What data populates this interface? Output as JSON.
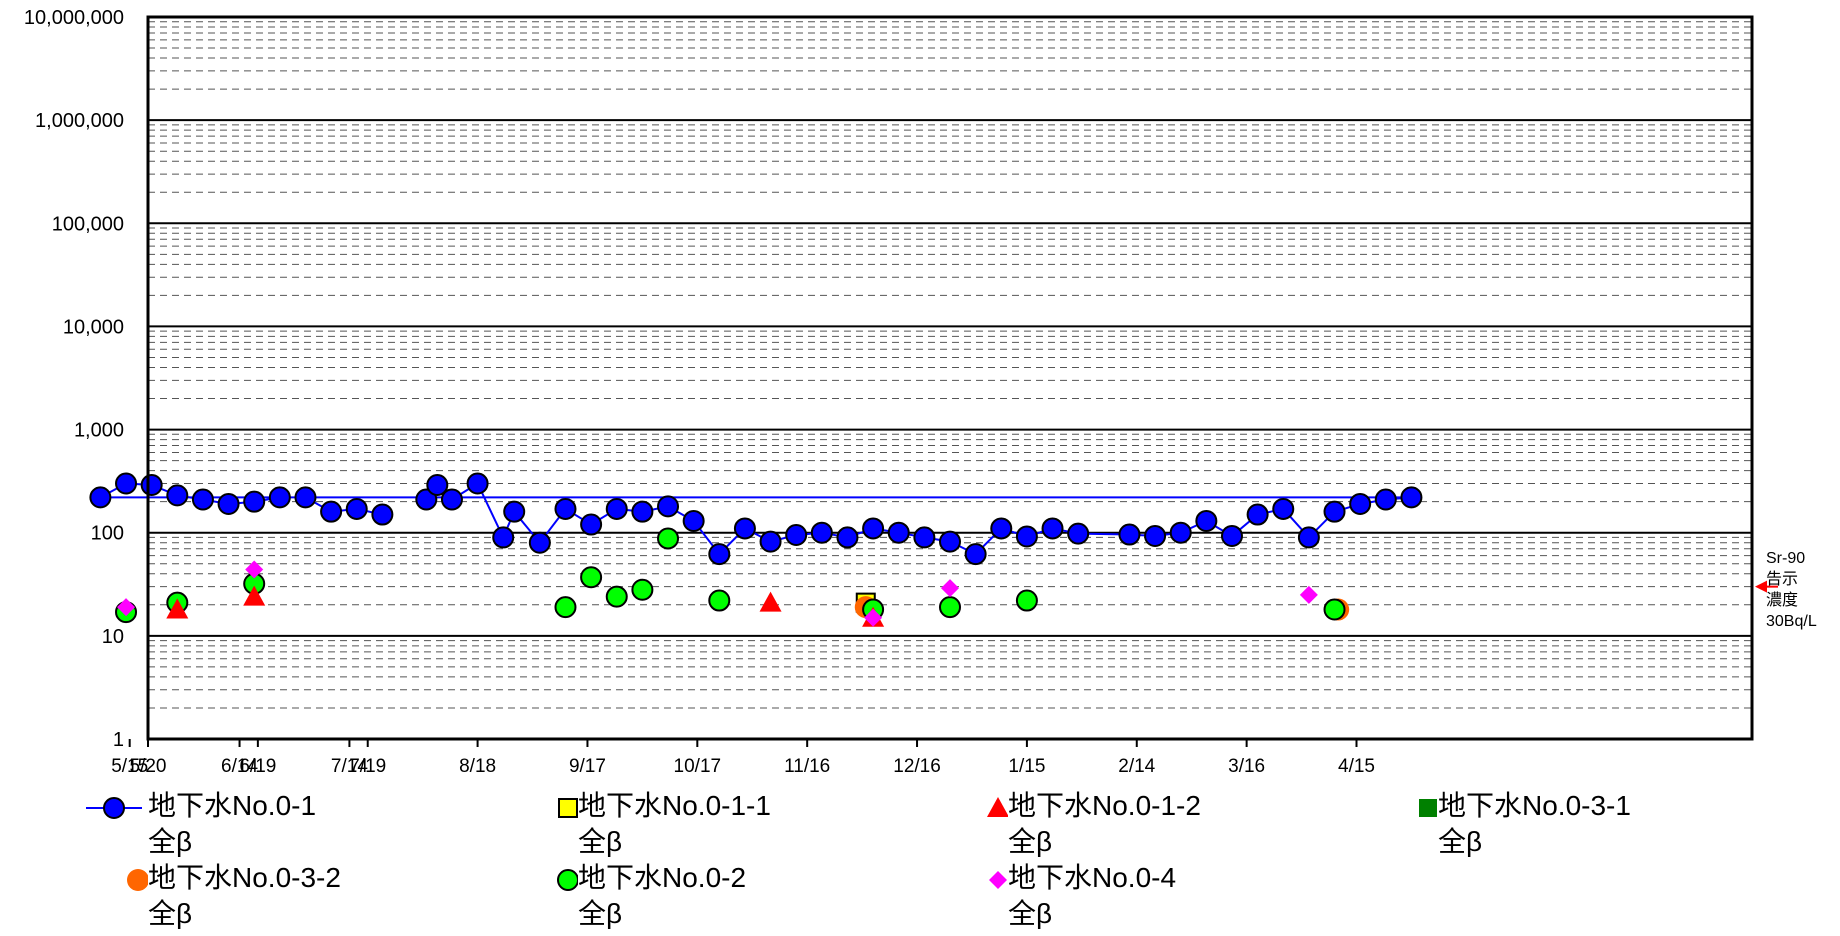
{
  "chart_data": {
    "type": "scatter",
    "title": "",
    "xlabel": "",
    "ylabel": "",
    "y_scale": "log",
    "ylim": [
      1,
      10000000
    ],
    "y_ticks": [
      "1",
      "10",
      "100",
      "1,000",
      "10,000",
      "100,000",
      "1,000,000",
      "10,000,000"
    ],
    "y_tick_values": [
      1,
      10,
      100,
      1000,
      10000,
      100000,
      1000000,
      10000000
    ],
    "x_ticks": [
      "5/20",
      "6/19",
      "7/19",
      "8/18",
      "9/17",
      "10/17",
      "11/16",
      "12/16",
      "1/15",
      "2/14",
      "3/16",
      "4/15",
      "5/15",
      "6/14",
      "7/14"
    ],
    "xlim": [
      "5/20",
      "8/1"
    ],
    "grid": true,
    "legend_placement": "bottom",
    "annotation": {
      "lines": [
        "Sr-90",
        "告示",
        "濃度",
        "30Bq/L"
      ],
      "value": 30,
      "color": "#ff0000"
    },
    "series": [
      {
        "name": "地下水No.0-1 全β",
        "label_lines": [
          "地下水No.0-1",
          "全β"
        ],
        "marker": "circle",
        "color": "#0000ff",
        "line": true,
        "points": [
          [
            "8/4",
            210
          ],
          [
            "8/7",
            290
          ],
          [
            "8/11",
            210
          ],
          [
            "8/18",
            300
          ],
          [
            "8/25",
            90
          ],
          [
            "8/28",
            160
          ],
          [
            "9/4",
            80
          ],
          [
            "9/11",
            170
          ],
          [
            "9/18",
            120
          ],
          [
            "9/25",
            170
          ],
          [
            "10/2",
            160
          ],
          [
            "10/9",
            180
          ],
          [
            "10/16",
            130
          ],
          [
            "10/23",
            62
          ],
          [
            "10/30",
            110
          ],
          [
            "11/6",
            82
          ],
          [
            "11/13",
            95
          ],
          [
            "11/20",
            100
          ],
          [
            "11/27",
            90
          ],
          [
            "12/4",
            110
          ],
          [
            "12/11",
            100
          ],
          [
            "12/18",
            90
          ],
          [
            "12/25",
            82
          ],
          [
            "1/1",
            62
          ],
          [
            "1/8",
            110
          ],
          [
            "1/15",
            92
          ],
          [
            "1/22",
            110
          ],
          [
            "1/29",
            98
          ],
          [
            "2/12",
            96
          ],
          [
            "2/19",
            93
          ],
          [
            "2/26",
            100
          ],
          [
            "3/5",
            130
          ],
          [
            "3/12",
            93
          ],
          [
            "3/19",
            150
          ],
          [
            "3/26",
            170
          ],
          [
            "4/2",
            90
          ],
          [
            "4/9",
            160
          ],
          [
            "4/16",
            190
          ],
          [
            "4/23",
            210
          ],
          [
            "4/30",
            220
          ],
          [
            "5/7",
            220
          ],
          [
            "5/14",
            300
          ],
          [
            "5/21",
            290
          ],
          [
            "5/28",
            230
          ],
          [
            "6/4",
            210
          ],
          [
            "6/11",
            190
          ],
          [
            "6/18",
            200
          ],
          [
            "6/25",
            220
          ],
          [
            "7/2",
            220
          ],
          [
            "7/9",
            160
          ],
          [
            "7/16",
            170
          ],
          [
            "7/23",
            150
          ]
        ]
      },
      {
        "name": "地下水No.0-1-1 全β",
        "label_lines": [
          "地下水No.0-1-1",
          "全β"
        ],
        "marker": "square-open",
        "color": "#ffff00",
        "line": false,
        "points": [
          [
            "12/2",
            21
          ]
        ]
      },
      {
        "name": "地下水No.0-1-2 全β",
        "label_lines": [
          "地下水No.0-1-2",
          "全β"
        ],
        "marker": "triangle",
        "color": "#ff0000",
        "line": false,
        "points": [
          [
            "11/6",
            21
          ],
          [
            "12/4",
            15
          ],
          [
            "5/28",
            18
          ],
          [
            "6/18",
            24
          ]
        ]
      },
      {
        "name": "地下水No.0-3-1 全β",
        "label_lines": [
          "地下水No.0-3-1",
          "全β"
        ],
        "marker": "square",
        "color": "#008000",
        "line": false,
        "points": []
      },
      {
        "name": "地下水No.0-3-2 全β",
        "label_lines": [
          "地下水No.0-3-2",
          "全β"
        ],
        "marker": "circle-plain",
        "color": "#ff6600",
        "line": false,
        "points": [
          [
            "12/2",
            19
          ],
          [
            "4/10",
            18
          ]
        ]
      },
      {
        "name": "地下水No.0-2 全β",
        "label_lines": [
          "地下水No.0-2",
          "全β"
        ],
        "marker": "circle",
        "color": "#00ff00",
        "line": false,
        "points": [
          [
            "9/11",
            19
          ],
          [
            "9/18",
            37
          ],
          [
            "9/25",
            24
          ],
          [
            "10/2",
            28
          ],
          [
            "10/9",
            88
          ],
          [
            "10/23",
            22
          ],
          [
            "12/4",
            18
          ],
          [
            "12/25",
            19
          ],
          [
            "1/15",
            22
          ],
          [
            "4/9",
            18
          ],
          [
            "5/14",
            17
          ],
          [
            "5/28",
            21
          ],
          [
            "6/18",
            32
          ]
        ]
      },
      {
        "name": "地下水No.0-4 全β",
        "label_lines": [
          "地下水No.0-4",
          "全β"
        ],
        "marker": "diamond",
        "color": "#ff00ff",
        "line": false,
        "points": [
          [
            "12/4",
            15
          ],
          [
            "12/25",
            29
          ],
          [
            "4/2",
            25
          ],
          [
            "5/14",
            19
          ],
          [
            "6/18",
            44
          ]
        ]
      }
    ]
  }
}
